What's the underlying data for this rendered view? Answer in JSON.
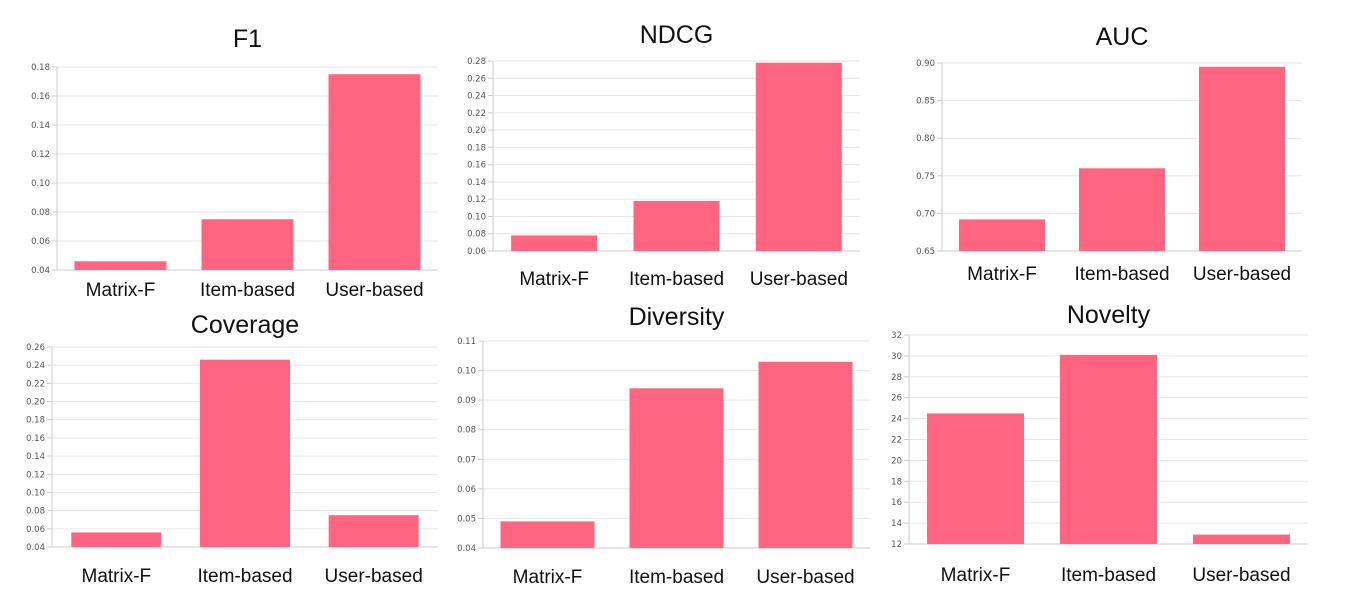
{
  "chart_data": [
    {
      "type": "bar",
      "title": "F1",
      "categories": [
        "Matrix-F",
        "Item-based",
        "User-based"
      ],
      "values": [
        0.046,
        0.075,
        0.175
      ],
      "ylim": [
        0.04,
        0.18
      ],
      "yticks": [
        "0.04",
        "0.06",
        "0.08",
        "0.10",
        "0.12",
        "0.14",
        "0.16",
        "0.18"
      ],
      "grid": true,
      "color": "#ff6480"
    },
    {
      "type": "bar",
      "title": "NDCG",
      "categories": [
        "Matrix-F",
        "Item-based",
        "User-based"
      ],
      "values": [
        0.078,
        0.118,
        0.278
      ],
      "ylim": [
        0.06,
        0.28
      ],
      "yticks": [
        "0.06",
        "0.08",
        "0.10",
        "0.12",
        "0.14",
        "0.16",
        "0.18",
        "0.20",
        "0.22",
        "0.24",
        "0.26",
        "0.28"
      ],
      "grid": true,
      "color": "#ff6480"
    },
    {
      "type": "bar",
      "title": "AUC",
      "categories": [
        "Matrix-F",
        "Item-based",
        "User-based"
      ],
      "values": [
        0.692,
        0.76,
        0.895
      ],
      "ylim": [
        0.65,
        0.9
      ],
      "yticks": [
        "0.65",
        "0.70",
        "0.75",
        "0.80",
        "0.85",
        "0.90"
      ],
      "grid": true,
      "color": "#ff6480"
    },
    {
      "type": "bar",
      "title": "Coverage",
      "categories": [
        "Matrix-F",
        "Item-based",
        "User-based"
      ],
      "values": [
        0.056,
        0.246,
        0.075
      ],
      "ylim": [
        0.04,
        0.26
      ],
      "yticks": [
        "0.04",
        "0.06",
        "0.08",
        "0.10",
        "0.12",
        "0.14",
        "0.16",
        "0.18",
        "0.20",
        "0.22",
        "0.24",
        "0.26"
      ],
      "grid": true,
      "color": "#ff6480"
    },
    {
      "type": "bar",
      "title": "Diversity",
      "categories": [
        "Matrix-F",
        "Item-based",
        "User-based"
      ],
      "values": [
        0.049,
        0.094,
        0.103
      ],
      "ylim": [
        0.04,
        0.11
      ],
      "yticks": [
        "0.04",
        "0.05",
        "0.06",
        "0.07",
        "0.08",
        "0.09",
        "0.10",
        "0.11"
      ],
      "grid": true,
      "color": "#ff6480"
    },
    {
      "type": "bar",
      "title": "Novelty",
      "categories": [
        "Matrix-F",
        "Item-based",
        "User-based"
      ],
      "values": [
        24.5,
        30.1,
        12.9
      ],
      "ylim": [
        12,
        32
      ],
      "yticks": [
        "12",
        "14",
        "16",
        "18",
        "20",
        "22",
        "24",
        "26",
        "28",
        "30",
        "32"
      ],
      "grid": true,
      "color": "#ff6480"
    }
  ]
}
